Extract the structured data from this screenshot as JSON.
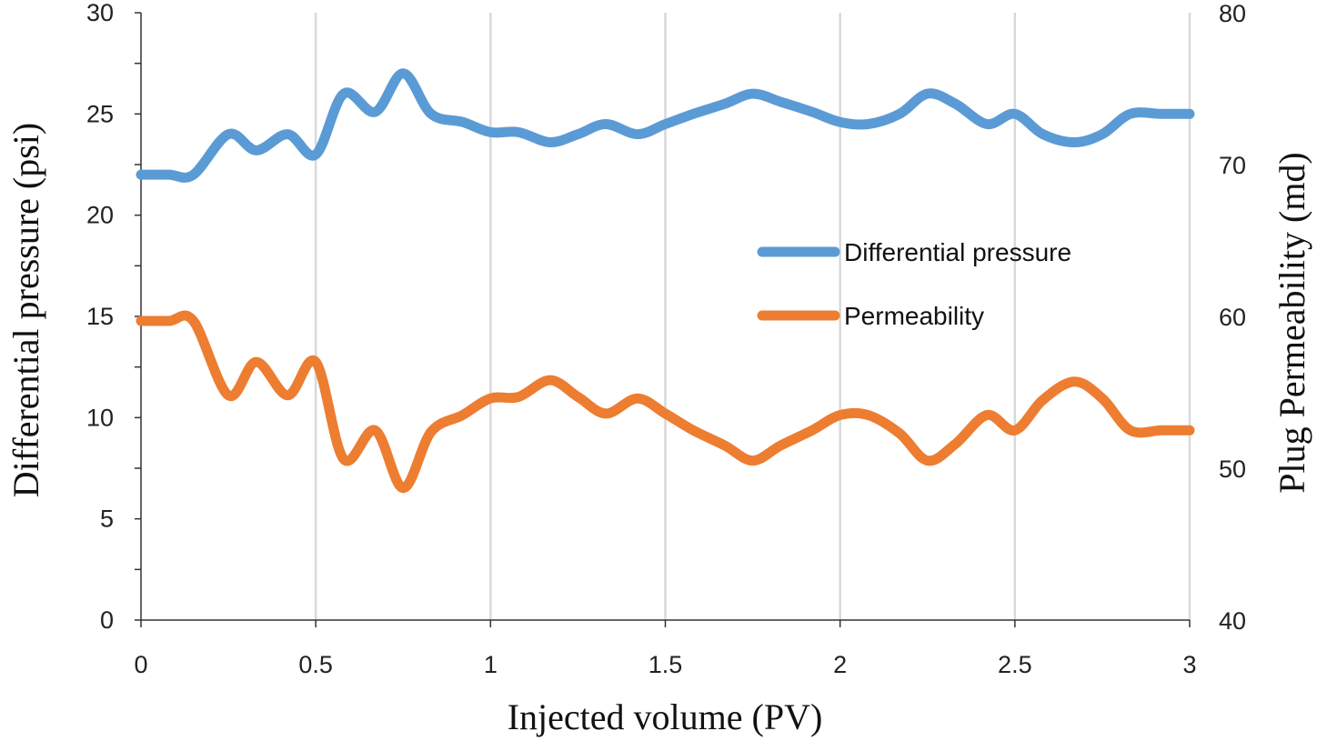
{
  "chart_data": {
    "type": "line",
    "xlabel": "Injected volume (PV)",
    "ylabel_left": "Differential pressure (psi)",
    "ylabel_right": "Plug Permeability (md)",
    "xlim": [
      0,
      3
    ],
    "ylim_left": [
      0,
      30
    ],
    "ylim_right": [
      40,
      80
    ],
    "x_ticks": [
      "0",
      "0.5",
      "1",
      "1.5",
      "2",
      "2.5",
      "3"
    ],
    "x_tick_values": [
      0,
      0.5,
      1,
      1.5,
      2,
      2.5,
      3
    ],
    "y_left_ticks": [
      "0",
      "5",
      "10",
      "15",
      "20",
      "25",
      "30"
    ],
    "y_left_tick_values": [
      0,
      5,
      10,
      15,
      20,
      25,
      30
    ],
    "y_right_ticks": [
      "40",
      "50",
      "60",
      "70",
      "80"
    ],
    "y_right_tick_values": [
      40,
      50,
      60,
      70,
      80
    ],
    "grid": "vertical",
    "legend_position": "center-right",
    "series": [
      {
        "name": "Differential pressure",
        "axis": "left",
        "color": "#5b9bd5",
        "x": [
          0,
          0.08,
          0.15,
          0.25,
          0.33,
          0.42,
          0.5,
          0.58,
          0.67,
          0.75,
          0.83,
          0.92,
          1.0,
          1.08,
          1.17,
          1.25,
          1.33,
          1.42,
          1.5,
          1.58,
          1.67,
          1.75,
          1.83,
          1.92,
          2.0,
          2.08,
          2.17,
          2.25,
          2.33,
          2.42,
          2.5,
          2.58,
          2.67,
          2.75,
          2.83,
          2.92,
          3.0
        ],
        "values": [
          22,
          22,
          22,
          24,
          23.2,
          24,
          23,
          26,
          25.1,
          27,
          25,
          24.6,
          24.1,
          24.1,
          23.6,
          24,
          24.5,
          24,
          24.5,
          25,
          25.5,
          26,
          25.6,
          25.1,
          24.6,
          24.5,
          25,
          26,
          25.5,
          24.5,
          25,
          24,
          23.6,
          24,
          25,
          25,
          25
        ]
      },
      {
        "name": "Permeability",
        "axis": "right",
        "color": "#ed7d31",
        "x": [
          0,
          0.08,
          0.15,
          0.25,
          0.33,
          0.42,
          0.5,
          0.58,
          0.67,
          0.75,
          0.83,
          0.92,
          1.0,
          1.08,
          1.17,
          1.25,
          1.33,
          1.42,
          1.5,
          1.58,
          1.67,
          1.75,
          1.83,
          1.92,
          2.0,
          2.08,
          2.17,
          2.25,
          2.33,
          2.42,
          2.5,
          2.58,
          2.67,
          2.75,
          2.83,
          2.92,
          3.0
        ],
        "values": [
          59.7,
          59.7,
          59.7,
          54.8,
          57,
          54.8,
          57,
          50.6,
          52.5,
          48.7,
          52.4,
          53.5,
          54.6,
          54.7,
          55.8,
          54.7,
          53.6,
          54.6,
          53.6,
          52.5,
          51.5,
          50.5,
          51.5,
          52.5,
          53.5,
          53.5,
          52.3,
          50.5,
          51.6,
          53.5,
          52.5,
          54.5,
          55.7,
          54.6,
          52.5,
          52.5,
          52.5
        ]
      }
    ]
  }
}
